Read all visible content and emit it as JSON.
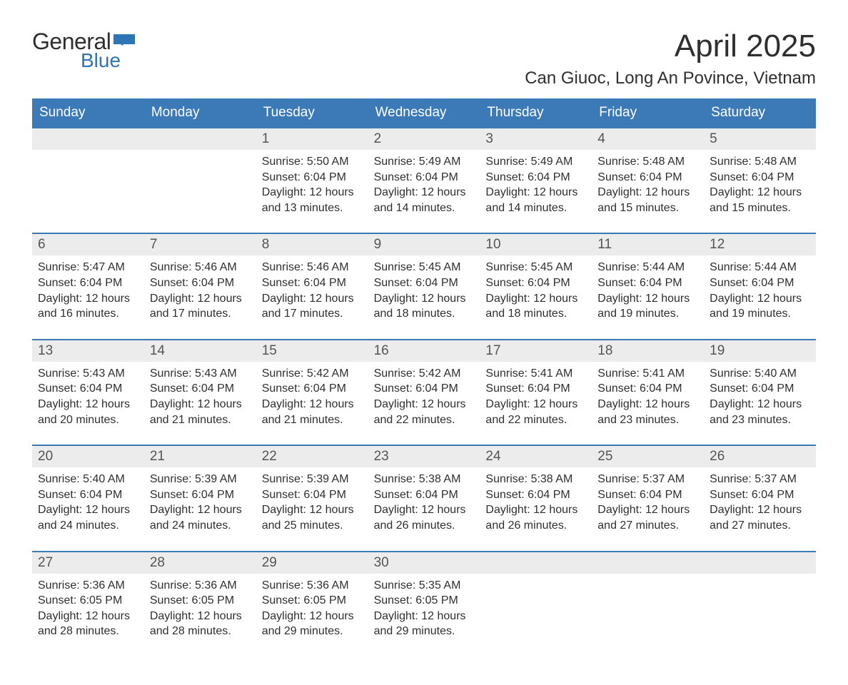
{
  "logo": {
    "word1": "General",
    "word2": "Blue",
    "shape_color": "#2e75b6"
  },
  "title": "April 2025",
  "location": "Can Giuoc, Long An Povince, Vietnam",
  "colors": {
    "header_bg": "#3b79b7",
    "header_text": "#ffffff",
    "daynum_bg": "#ececec",
    "text": "#2f2f2f",
    "accent": "#2e75b6"
  },
  "weekdays": [
    "Sunday",
    "Monday",
    "Tuesday",
    "Wednesday",
    "Thursday",
    "Friday",
    "Saturday"
  ],
  "weeks": [
    {
      "days": [
        {
          "num": "",
          "lines": []
        },
        {
          "num": "",
          "lines": []
        },
        {
          "num": "1",
          "lines": [
            "Sunrise: 5:50 AM",
            "Sunset: 6:04 PM",
            "Daylight: 12 hours",
            "and 13 minutes."
          ]
        },
        {
          "num": "2",
          "lines": [
            "Sunrise: 5:49 AM",
            "Sunset: 6:04 PM",
            "Daylight: 12 hours",
            "and 14 minutes."
          ]
        },
        {
          "num": "3",
          "lines": [
            "Sunrise: 5:49 AM",
            "Sunset: 6:04 PM",
            "Daylight: 12 hours",
            "and 14 minutes."
          ]
        },
        {
          "num": "4",
          "lines": [
            "Sunrise: 5:48 AM",
            "Sunset: 6:04 PM",
            "Daylight: 12 hours",
            "and 15 minutes."
          ]
        },
        {
          "num": "5",
          "lines": [
            "Sunrise: 5:48 AM",
            "Sunset: 6:04 PM",
            "Daylight: 12 hours",
            "and 15 minutes."
          ]
        }
      ]
    },
    {
      "days": [
        {
          "num": "6",
          "lines": [
            "Sunrise: 5:47 AM",
            "Sunset: 6:04 PM",
            "Daylight: 12 hours",
            "and 16 minutes."
          ]
        },
        {
          "num": "7",
          "lines": [
            "Sunrise: 5:46 AM",
            "Sunset: 6:04 PM",
            "Daylight: 12 hours",
            "and 17 minutes."
          ]
        },
        {
          "num": "8",
          "lines": [
            "Sunrise: 5:46 AM",
            "Sunset: 6:04 PM",
            "Daylight: 12 hours",
            "and 17 minutes."
          ]
        },
        {
          "num": "9",
          "lines": [
            "Sunrise: 5:45 AM",
            "Sunset: 6:04 PM",
            "Daylight: 12 hours",
            "and 18 minutes."
          ]
        },
        {
          "num": "10",
          "lines": [
            "Sunrise: 5:45 AM",
            "Sunset: 6:04 PM",
            "Daylight: 12 hours",
            "and 18 minutes."
          ]
        },
        {
          "num": "11",
          "lines": [
            "Sunrise: 5:44 AM",
            "Sunset: 6:04 PM",
            "Daylight: 12 hours",
            "and 19 minutes."
          ]
        },
        {
          "num": "12",
          "lines": [
            "Sunrise: 5:44 AM",
            "Sunset: 6:04 PM",
            "Daylight: 12 hours",
            "and 19 minutes."
          ]
        }
      ]
    },
    {
      "days": [
        {
          "num": "13",
          "lines": [
            "Sunrise: 5:43 AM",
            "Sunset: 6:04 PM",
            "Daylight: 12 hours",
            "and 20 minutes."
          ]
        },
        {
          "num": "14",
          "lines": [
            "Sunrise: 5:43 AM",
            "Sunset: 6:04 PM",
            "Daylight: 12 hours",
            "and 21 minutes."
          ]
        },
        {
          "num": "15",
          "lines": [
            "Sunrise: 5:42 AM",
            "Sunset: 6:04 PM",
            "Daylight: 12 hours",
            "and 21 minutes."
          ]
        },
        {
          "num": "16",
          "lines": [
            "Sunrise: 5:42 AM",
            "Sunset: 6:04 PM",
            "Daylight: 12 hours",
            "and 22 minutes."
          ]
        },
        {
          "num": "17",
          "lines": [
            "Sunrise: 5:41 AM",
            "Sunset: 6:04 PM",
            "Daylight: 12 hours",
            "and 22 minutes."
          ]
        },
        {
          "num": "18",
          "lines": [
            "Sunrise: 5:41 AM",
            "Sunset: 6:04 PM",
            "Daylight: 12 hours",
            "and 23 minutes."
          ]
        },
        {
          "num": "19",
          "lines": [
            "Sunrise: 5:40 AM",
            "Sunset: 6:04 PM",
            "Daylight: 12 hours",
            "and 23 minutes."
          ]
        }
      ]
    },
    {
      "days": [
        {
          "num": "20",
          "lines": [
            "Sunrise: 5:40 AM",
            "Sunset: 6:04 PM",
            "Daylight: 12 hours",
            "and 24 minutes."
          ]
        },
        {
          "num": "21",
          "lines": [
            "Sunrise: 5:39 AM",
            "Sunset: 6:04 PM",
            "Daylight: 12 hours",
            "and 24 minutes."
          ]
        },
        {
          "num": "22",
          "lines": [
            "Sunrise: 5:39 AM",
            "Sunset: 6:04 PM",
            "Daylight: 12 hours",
            "and 25 minutes."
          ]
        },
        {
          "num": "23",
          "lines": [
            "Sunrise: 5:38 AM",
            "Sunset: 6:04 PM",
            "Daylight: 12 hours",
            "and 26 minutes."
          ]
        },
        {
          "num": "24",
          "lines": [
            "Sunrise: 5:38 AM",
            "Sunset: 6:04 PM",
            "Daylight: 12 hours",
            "and 26 minutes."
          ]
        },
        {
          "num": "25",
          "lines": [
            "Sunrise: 5:37 AM",
            "Sunset: 6:04 PM",
            "Daylight: 12 hours",
            "and 27 minutes."
          ]
        },
        {
          "num": "26",
          "lines": [
            "Sunrise: 5:37 AM",
            "Sunset: 6:04 PM",
            "Daylight: 12 hours",
            "and 27 minutes."
          ]
        }
      ]
    },
    {
      "days": [
        {
          "num": "27",
          "lines": [
            "Sunrise: 5:36 AM",
            "Sunset: 6:05 PM",
            "Daylight: 12 hours",
            "and 28 minutes."
          ]
        },
        {
          "num": "28",
          "lines": [
            "Sunrise: 5:36 AM",
            "Sunset: 6:05 PM",
            "Daylight: 12 hours",
            "and 28 minutes."
          ]
        },
        {
          "num": "29",
          "lines": [
            "Sunrise: 5:36 AM",
            "Sunset: 6:05 PM",
            "Daylight: 12 hours",
            "and 29 minutes."
          ]
        },
        {
          "num": "30",
          "lines": [
            "Sunrise: 5:35 AM",
            "Sunset: 6:05 PM",
            "Daylight: 12 hours",
            "and 29 minutes."
          ]
        },
        {
          "num": "",
          "lines": []
        },
        {
          "num": "",
          "lines": []
        },
        {
          "num": "",
          "lines": []
        }
      ]
    }
  ]
}
